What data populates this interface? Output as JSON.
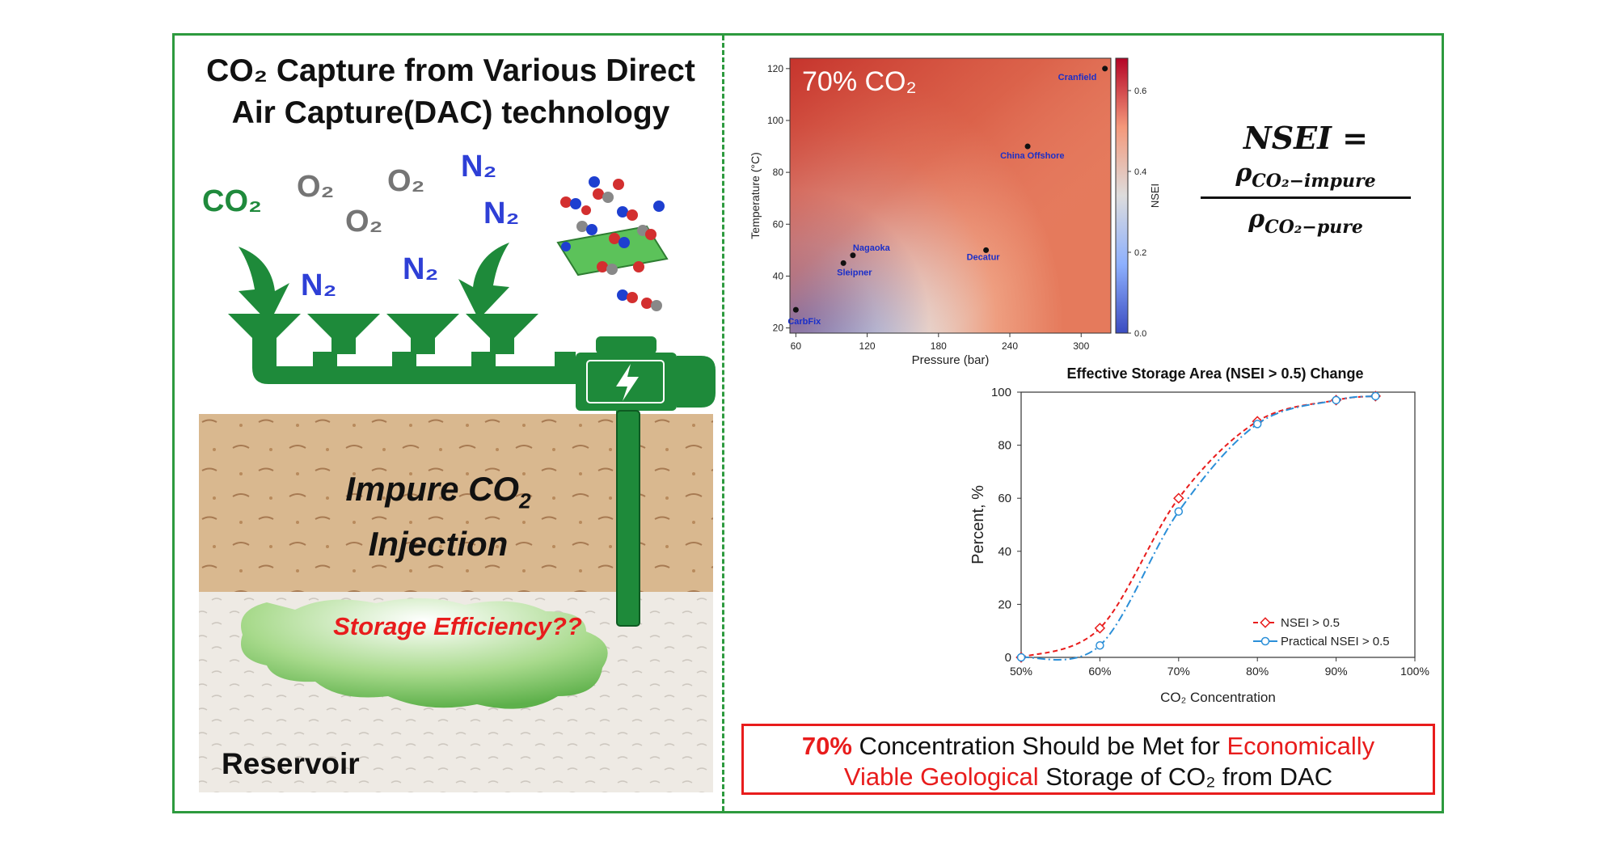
{
  "left_panel": {
    "title_line1": "CO₂ Capture from Various Direct",
    "title_line2": "Air Capture(DAC) technology",
    "gases": {
      "co2": "CO₂",
      "o2_a": "O₂",
      "o2_b": "O₂",
      "o2_c": "O₂",
      "n2_a": "N₂",
      "n2_b": "N₂",
      "n2_c": "N₂",
      "n2_d": "N₂"
    },
    "injection_line1": "Impure CO",
    "injection_sub": "2",
    "injection_line2": "Injection",
    "storage_question": "Storage Efficiency??",
    "reservoir_label": "Reservoir",
    "colors": {
      "pipe": "#1e8a3a",
      "sediment": "#d6b48a",
      "reservoir": "#ece8e2",
      "cloud": "#8fce6e"
    }
  },
  "formula": {
    "lhs": "NSEI =",
    "numerator": "ρ",
    "numerator_sub": "CO₂−impure",
    "denominator": "ρ",
    "denominator_sub": "CO₂−pure"
  },
  "chart_data": [
    {
      "type": "heatmap",
      "annotation": "70% CO₂",
      "xlabel": "Pressure (bar)",
      "ylabel": "Temperature (°C)",
      "xticks": [
        "60",
        "120",
        "180",
        "240",
        "300"
      ],
      "yticks": [
        "20",
        "40",
        "60",
        "80",
        "100",
        "120"
      ],
      "xlim": [
        55,
        325
      ],
      "ylim": [
        18,
        124
      ],
      "colorbar_label": "NSEI",
      "colorbar_ticks": [
        "0.0",
        "0.2",
        "0.4",
        "0.6"
      ],
      "colorbar_range": [
        0.0,
        0.68
      ],
      "sites": [
        {
          "name": "Cranfield",
          "x": 320,
          "y": 120
        },
        {
          "name": "China Offshore",
          "x": 255,
          "y": 90
        },
        {
          "name": "Nagaoka",
          "x": 108,
          "y": 48
        },
        {
          "name": "Sleipner",
          "x": 100,
          "y": 45
        },
        {
          "name": "Decatur",
          "x": 220,
          "y": 50
        },
        {
          "name": "CarbFix",
          "x": 60,
          "y": 27
        }
      ]
    },
    {
      "type": "line",
      "title": "Effective Storage Area (NSEI > 0.5) Change",
      "xlabel": "CO₂ Concentration",
      "ylabel": "Percent, %",
      "xticks": [
        "50%",
        "60%",
        "70%",
        "80%",
        "90%",
        "100%"
      ],
      "yticks": [
        "0",
        "20",
        "40",
        "60",
        "80",
        "100"
      ],
      "xlim": [
        50,
        100
      ],
      "ylim": [
        0,
        100
      ],
      "series": [
        {
          "name": "NSEI > 0.5",
          "color": "#e81c1c",
          "x": [
            50,
            60,
            70,
            80,
            90,
            95
          ],
          "y": [
            0,
            11,
            60,
            89,
            97,
            98.5
          ]
        },
        {
          "name": "Practical NSEI > 0.5",
          "color": "#2b8fd8",
          "x": [
            50,
            60,
            70,
            80,
            90,
            95
          ],
          "y": [
            0,
            4.5,
            55,
            88,
            97,
            98.5
          ]
        }
      ]
    }
  ],
  "conclusion": {
    "p1": "70%",
    "p2": " Concentration Should be Met for ",
    "p3": "Economically",
    "p4": "Viable Geological",
    "p5": " Storage of CO₂ from DAC"
  }
}
